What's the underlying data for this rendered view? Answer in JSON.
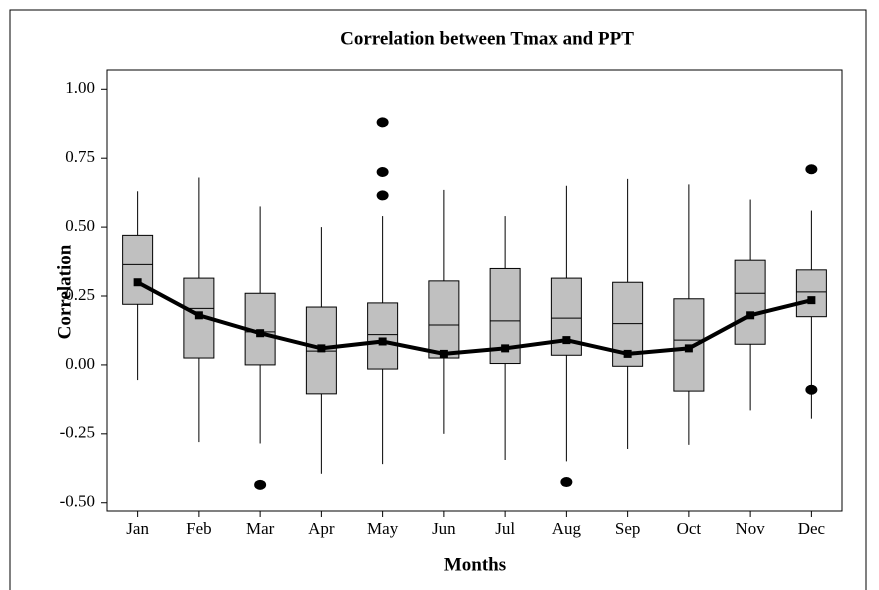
{
  "chart_data": {
    "type": "box",
    "title": "Correlation between Tmax and PPT",
    "xlabel": "Months",
    "ylabel": "Correlation",
    "categories": [
      "Jan",
      "Feb",
      "Mar",
      "Apr",
      "May",
      "Jun",
      "Jul",
      "Aug",
      "Sep",
      "Oct",
      "Nov",
      "Dec"
    ],
    "whislo": [
      -0.055,
      -0.28,
      -0.285,
      -0.395,
      -0.36,
      -0.25,
      -0.345,
      -0.35,
      -0.305,
      -0.29,
      -0.165,
      -0.195
    ],
    "q1": [
      0.22,
      0.025,
      0.0,
      -0.105,
      -0.015,
      0.025,
      0.005,
      0.035,
      -0.005,
      -0.095,
      0.075,
      0.175
    ],
    "median": [
      0.365,
      0.205,
      0.12,
      0.05,
      0.11,
      0.145,
      0.16,
      0.17,
      0.15,
      0.09,
      0.26,
      0.265
    ],
    "q3": [
      0.47,
      0.315,
      0.26,
      0.21,
      0.225,
      0.305,
      0.35,
      0.315,
      0.3,
      0.24,
      0.38,
      0.345
    ],
    "whishi": [
      0.63,
      0.68,
      0.575,
      0.5,
      0.54,
      0.635,
      0.54,
      0.65,
      0.675,
      0.655,
      0.6,
      0.56
    ],
    "mean": [
      0.3,
      0.18,
      0.115,
      0.06,
      0.085,
      0.04,
      0.06,
      0.09,
      0.04,
      0.06,
      0.18,
      0.235
    ],
    "outliers": [
      [],
      [],
      [
        -0.435
      ],
      [],
      [
        0.88,
        0.7,
        0.615
      ],
      [],
      [],
      [
        -0.425
      ],
      [],
      [],
      [],
      [
        0.71,
        -0.09
      ]
    ],
    "box_color": "#c0c0c0",
    "line_color": "#000000",
    "ylim": [
      -0.53,
      1.07
    ],
    "yticks": [
      {
        "value": -0.5,
        "label": "-0.50"
      },
      {
        "value": -0.25,
        "label": "-0.25"
      },
      {
        "value": 0,
        "label": "0.00"
      },
      {
        "value": 0.25,
        "label": "0.25"
      },
      {
        "value": 0.5,
        "label": "0.50"
      },
      {
        "value": 0.75,
        "label": "0.75"
      },
      {
        "value": 1,
        "label": "1.00"
      }
    ]
  }
}
